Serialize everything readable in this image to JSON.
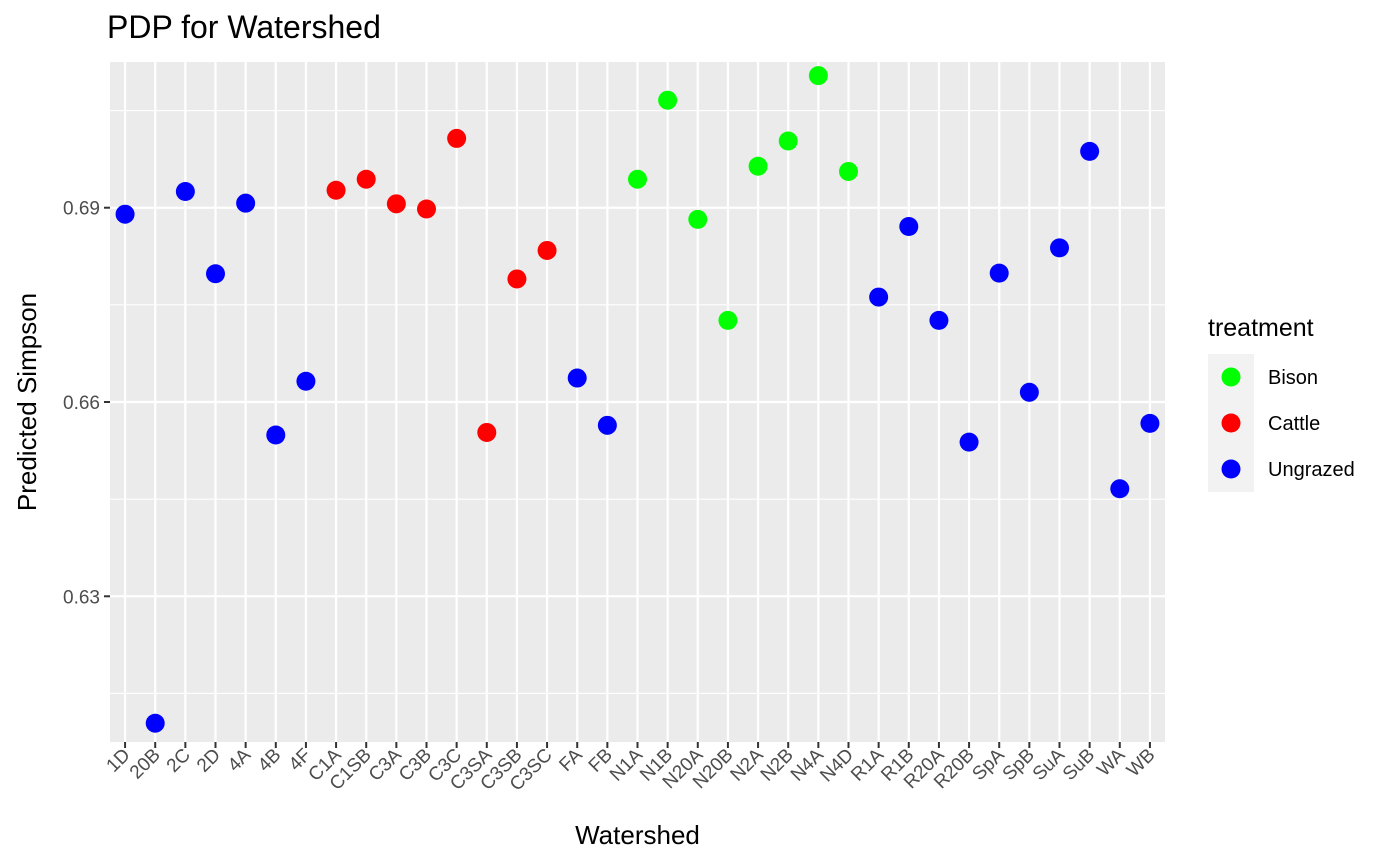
{
  "chart_data": {
    "type": "scatter",
    "title": "PDP for Watershed",
    "xlabel": "Watershed",
    "ylabel": "Predicted Simpson",
    "ylim": [
      0.6075,
      0.7125
    ],
    "yticks": [
      0.63,
      0.66,
      0.69
    ],
    "ytick_labels": [
      "0.63",
      "0.66",
      "0.69"
    ],
    "grid": true,
    "legend": {
      "title": "treatment",
      "position": "right",
      "entries": [
        {
          "label": "Bison",
          "color": "#00FF00"
        },
        {
          "label": "Cattle",
          "color": "#FF0000"
        },
        {
          "label": "Ungrazed",
          "color": "#0000FF"
        }
      ]
    },
    "categories": [
      "1D",
      "20B",
      "2C",
      "2D",
      "4A",
      "4B",
      "4F",
      "C1A",
      "C1SB",
      "C3A",
      "C3B",
      "C3C",
      "C3SA",
      "C3SB",
      "C3SC",
      "FA",
      "FB",
      "N1A",
      "N1B",
      "N20A",
      "N20B",
      "N2A",
      "N2B",
      "N4A",
      "N4D",
      "R1A",
      "R1B",
      "R20A",
      "R20B",
      "SpA",
      "SpB",
      "SuA",
      "SuB",
      "WA",
      "WB"
    ],
    "points": [
      {
        "x": "1D",
        "y": 0.689,
        "treatment": "Ungrazed"
      },
      {
        "x": "20B",
        "y": 0.6104,
        "treatment": "Ungrazed"
      },
      {
        "x": "2C",
        "y": 0.6925,
        "treatment": "Ungrazed"
      },
      {
        "x": "2D",
        "y": 0.6798,
        "treatment": "Ungrazed"
      },
      {
        "x": "4A",
        "y": 0.6907,
        "treatment": "Ungrazed"
      },
      {
        "x": "4B",
        "y": 0.6549,
        "treatment": "Ungrazed"
      },
      {
        "x": "4F",
        "y": 0.6632,
        "treatment": "Ungrazed"
      },
      {
        "x": "C1A",
        "y": 0.6927,
        "treatment": "Cattle"
      },
      {
        "x": "C1SB",
        "y": 0.6944,
        "treatment": "Cattle"
      },
      {
        "x": "C3A",
        "y": 0.6906,
        "treatment": "Cattle"
      },
      {
        "x": "C3B",
        "y": 0.6898,
        "treatment": "Cattle"
      },
      {
        "x": "C3C",
        "y": 0.7007,
        "treatment": "Cattle"
      },
      {
        "x": "C3SA",
        "y": 0.6553,
        "treatment": "Cattle"
      },
      {
        "x": "C3SB",
        "y": 0.679,
        "treatment": "Cattle"
      },
      {
        "x": "C3SC",
        "y": 0.6834,
        "treatment": "Cattle"
      },
      {
        "x": "FA",
        "y": 0.6637,
        "treatment": "Ungrazed"
      },
      {
        "x": "FB",
        "y": 0.6564,
        "treatment": "Ungrazed"
      },
      {
        "x": "N1A",
        "y": 0.6944,
        "treatment": "Bison"
      },
      {
        "x": "N1B",
        "y": 0.7066,
        "treatment": "Bison"
      },
      {
        "x": "N20A",
        "y": 0.6882,
        "treatment": "Bison"
      },
      {
        "x": "N20B",
        "y": 0.6726,
        "treatment": "Bison"
      },
      {
        "x": "N2A",
        "y": 0.6964,
        "treatment": "Bison"
      },
      {
        "x": "N2B",
        "y": 0.7003,
        "treatment": "Bison"
      },
      {
        "x": "N4A",
        "y": 0.7104,
        "treatment": "Bison"
      },
      {
        "x": "N4D",
        "y": 0.6956,
        "treatment": "Bison"
      },
      {
        "x": "R1A",
        "y": 0.6762,
        "treatment": "Ungrazed"
      },
      {
        "x": "R1B",
        "y": 0.6871,
        "treatment": "Ungrazed"
      },
      {
        "x": "R20A",
        "y": 0.6726,
        "treatment": "Ungrazed"
      },
      {
        "x": "R20B",
        "y": 0.6538,
        "treatment": "Ungrazed"
      },
      {
        "x": "SpA",
        "y": 0.6799,
        "treatment": "Ungrazed"
      },
      {
        "x": "SpB",
        "y": 0.6615,
        "treatment": "Ungrazed"
      },
      {
        "x": "SuA",
        "y": 0.6838,
        "treatment": "Ungrazed"
      },
      {
        "x": "SuB",
        "y": 0.6987,
        "treatment": "Ungrazed"
      },
      {
        "x": "WA",
        "y": 0.6466,
        "treatment": "Ungrazed"
      },
      {
        "x": "WB",
        "y": 0.6567,
        "treatment": "Ungrazed"
      }
    ]
  }
}
